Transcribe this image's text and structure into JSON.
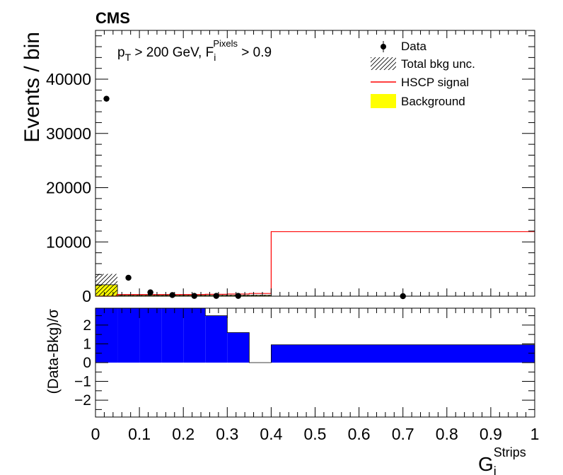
{
  "chart_data": [
    {
      "type": "histogram",
      "experiment_label": "CMS",
      "selection": {
        "main": "p",
        "sub_T": "T",
        "rest1": " > 200 GeV, F",
        "sub_i": "i",
        "sup": "Pixels",
        "rest2": " > 0.9"
      },
      "ylabel": "Events / bin",
      "xlim": [
        0,
        1
      ],
      "ylim": [
        0,
        49000
      ],
      "y_ticks": [
        0,
        10000,
        20000,
        30000,
        40000
      ],
      "y_tick_labels": [
        "0",
        "10000",
        "20000",
        "30000",
        "40000"
      ],
      "legend": {
        "placement": "top-right",
        "entries": [
          {
            "label": "Data",
            "style": "marker"
          },
          {
            "label": "Total bkg unc.",
            "style": "hatch"
          },
          {
            "label": "HSCP signal",
            "style": "line",
            "color": "#ff0000"
          },
          {
            "label": "Background",
            "style": "fill",
            "color": "#ffff00"
          }
        ]
      },
      "bin_edges": [
        0,
        0.05,
        0.1,
        0.15,
        0.2,
        0.25,
        0.3,
        0.35,
        0.4,
        1.0
      ],
      "series": [
        {
          "name": "Background",
          "color": "#ffff00",
          "values": [
            2100,
            150,
            150,
            150,
            150,
            150,
            150,
            150,
            0
          ]
        },
        {
          "name": "Total bkg unc.",
          "values": [
            2000,
            100,
            100,
            100,
            100,
            100,
            100,
            100,
            0
          ]
        },
        {
          "name": "HSCP signal",
          "color": "#ff0000",
          "values": [
            0,
            300,
            300,
            300,
            300,
            350,
            400,
            500,
            11900
          ]
        },
        {
          "name": "Data",
          "x": [
            0.025,
            0.075,
            0.125,
            0.175,
            0.225,
            0.275,
            0.325,
            0.7
          ],
          "y": [
            36400,
            3400,
            700,
            200,
            50,
            50,
            50,
            0
          ]
        }
      ]
    },
    {
      "type": "bar",
      "ylabel": "(Data-Bkg)/σ",
      "xlabel": {
        "main": "G",
        "sub": "i",
        "sup": "Strips"
      },
      "xlim": [
        0,
        1
      ],
      "ylim": [
        -2.9,
        2.9
      ],
      "y_ticks": [
        -2,
        -1,
        0,
        1,
        2
      ],
      "y_tick_labels": [
        "−2",
        "−1",
        "0",
        "1",
        "2"
      ],
      "x_ticks": [
        0,
        0.1,
        0.2,
        0.3,
        0.4,
        0.5,
        0.6,
        0.7,
        0.8,
        0.9,
        1
      ],
      "x_tick_labels": [
        "0",
        "0.1",
        "0.2",
        "0.3",
        "0.4",
        "0.5",
        "0.6",
        "0.7",
        "0.8",
        "0.9",
        "1"
      ],
      "bin_edges": [
        0,
        0.05,
        0.1,
        0.15,
        0.2,
        0.25,
        0.3,
        0.35,
        0.4,
        1.0
      ],
      "values": [
        3.0,
        3.0,
        3.0,
        3.0,
        3.0,
        2.5,
        1.6,
        0,
        0.95
      ],
      "color": "#0000ff"
    }
  ]
}
